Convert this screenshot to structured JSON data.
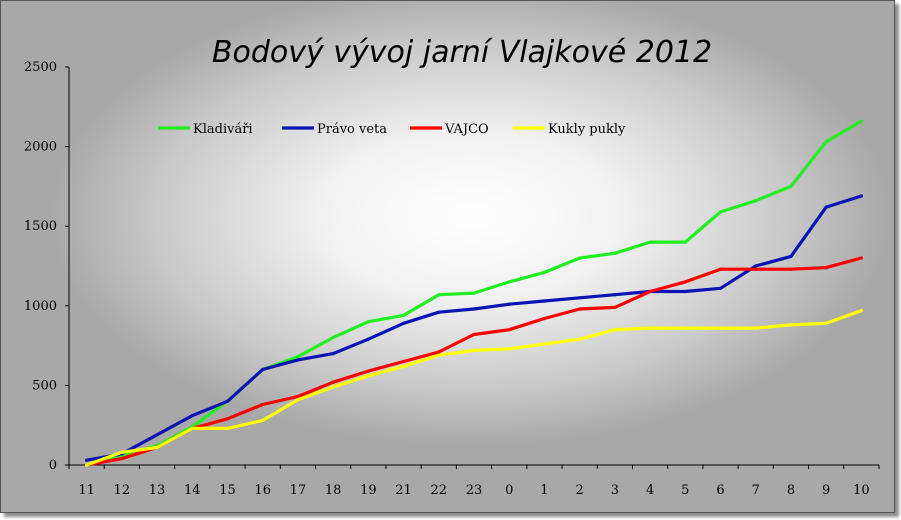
{
  "chart_data": {
    "type": "line",
    "title": "Bodový vývoj jarní Vlajkové 2012",
    "xlabel": "",
    "ylabel": "",
    "categories": [
      "11",
      "12",
      "13",
      "14",
      "15",
      "16",
      "17",
      "18",
      "19",
      "21",
      "22",
      "23",
      "0",
      "1",
      "2",
      "3",
      "4",
      "5",
      "6",
      "7",
      "8",
      "9",
      "10"
    ],
    "ylim": [
      0,
      2500
    ],
    "yticks": [
      0,
      500,
      1000,
      1500,
      2000,
      2500
    ],
    "grid": false,
    "legend_position": "top",
    "series": [
      {
        "name": "Kladiváři",
        "color": "#22ee22",
        "values": [
          0,
          60,
          120,
          240,
          400,
          600,
          680,
          800,
          900,
          940,
          1070,
          1080,
          1150,
          1210,
          1300,
          1330,
          1400,
          1400,
          1590,
          1660,
          1750,
          2030,
          2160
        ]
      },
      {
        "name": "Právo veta",
        "color": "#0a14b4",
        "values": [
          30,
          70,
          190,
          310,
          400,
          600,
          660,
          700,
          790,
          890,
          960,
          980,
          1010,
          1030,
          1050,
          1070,
          1090,
          1090,
          1110,
          1250,
          1310,
          1620,
          1690
        ]
      },
      {
        "name": "VAJCO",
        "color": "#ff0000",
        "values": [
          0,
          40,
          110,
          230,
          290,
          380,
          430,
          520,
          590,
          650,
          710,
          820,
          850,
          920,
          980,
          990,
          1090,
          1150,
          1230,
          1230,
          1230,
          1240,
          1300
        ]
      },
      {
        "name": "Kukly pukly",
        "color": "#ffff00",
        "values": [
          0,
          80,
          110,
          230,
          230,
          280,
          410,
          490,
          560,
          620,
          690,
          720,
          730,
          760,
          790,
          850,
          860,
          860,
          860,
          860,
          880,
          890,
          970
        ]
      }
    ]
  }
}
